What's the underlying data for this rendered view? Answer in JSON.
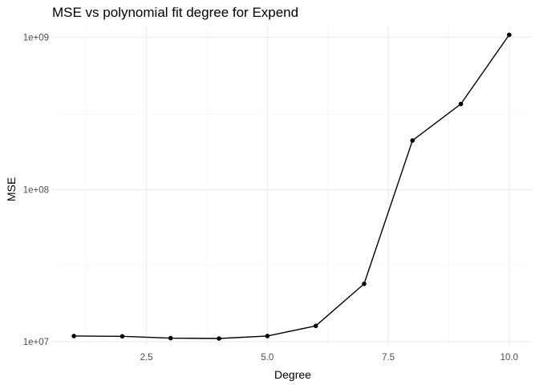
{
  "chart_data": {
    "type": "line",
    "title": "MSE vs polynomial fit degree for Expend",
    "xlabel": "Degree",
    "ylabel": "MSE",
    "xlim": [
      0.55,
      10.45
    ],
    "ylim": [
      9300000,
      1180000000
    ],
    "y_scale": "log10",
    "grid": true,
    "x_ticks": [
      2.5,
      5.0,
      7.5,
      10.0
    ],
    "x_tick_labels": [
      "2.5",
      "5.0",
      "7.5",
      "10.0"
    ],
    "x_minor_ticks": [
      1.25,
      3.75,
      6.25,
      8.75
    ],
    "y_ticks": [
      10000000,
      100000000,
      1000000000
    ],
    "y_tick_labels": [
      "1e+07",
      "1e+08",
      "1e+09"
    ],
    "y_minor_ticks": [
      31622777,
      316227766
    ],
    "series": [
      {
        "x": [
          1,
          2,
          3,
          4,
          5,
          6,
          7,
          8,
          9,
          10
        ],
        "y": [
          10900000,
          10850000,
          10550000,
          10500000,
          10900000,
          12700000,
          24000000,
          210000000,
          365000000,
          1040000000
        ]
      }
    ]
  }
}
